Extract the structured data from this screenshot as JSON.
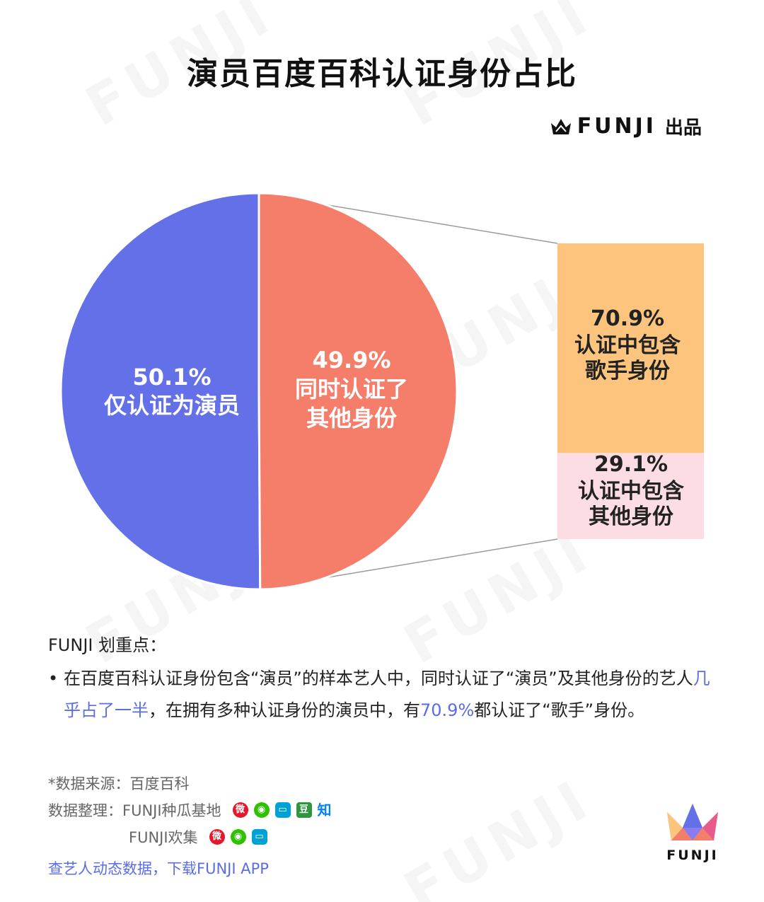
{
  "title": "演员百度百科认证身份占比",
  "brand": {
    "name": "FUNJI",
    "suffix": "出品"
  },
  "colors": {
    "actor_only": "#6470e8",
    "other_identity": "#f57e6b",
    "singer": "#fdc47e",
    "other": "#fbdde3",
    "highlight": "#5a6ce6"
  },
  "chart_data": [
    {
      "type": "pie",
      "slices": [
        {
          "value": 50.1,
          "value_label": "50.1%",
          "label_lines": [
            "仅认证为演员"
          ]
        },
        {
          "value": 49.9,
          "value_label": "49.9%",
          "label_lines": [
            "同时认证了",
            "其他身份"
          ]
        }
      ]
    },
    {
      "type": "bar",
      "stacked": true,
      "breakdown_of": "49.9%",
      "segments": [
        {
          "value": 70.9,
          "value_label": "70.9%",
          "label_lines": [
            "认证中包含",
            "歌手身份"
          ]
        },
        {
          "value": 29.1,
          "value_label": "29.1%",
          "label_lines": [
            "认证中包含",
            "其他身份"
          ]
        }
      ]
    }
  ],
  "notes": {
    "heading": "FUNJI 划重点：",
    "bullet": "•",
    "part1": "在百度百科认证身份包含“演员”的样本艺人中，同时认证了“演员”及其他身份的艺人",
    "highlight1": "几乎占了一半",
    "part2": "，在拥有多种认证身份的演员中，有",
    "highlight2": "70.9%",
    "part3": "都认证了“歌手”身份。"
  },
  "footer": {
    "source": "*数据来源：百度百科",
    "organizer_label": "数据整理：",
    "organizer1": "FUNJI种瓜基地",
    "organizer2": "FUNJI欢集",
    "cta": "查艺人动态数据，下载FUNJI APP"
  },
  "icons": [
    "weibo-icon",
    "wechat-icon",
    "bilibili-icon",
    "douban-icon",
    "zhihu-icon"
  ],
  "logo_word": "FUNJI"
}
